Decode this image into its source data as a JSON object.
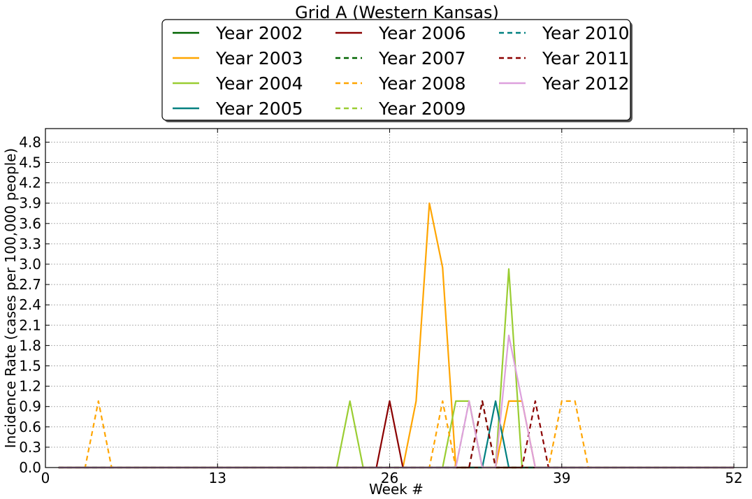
{
  "chart_data": {
    "type": "line",
    "title": "Grid A (Western Kansas)",
    "xlabel": "Week #",
    "ylabel": "Incidence Rate (cases per 100,000 people)",
    "xlim": [
      0,
      53
    ],
    "ylim": [
      0,
      5.0
    ],
    "xticks": [
      0,
      13,
      26,
      39,
      52
    ],
    "yticks": [
      0.0,
      0.3,
      0.6,
      0.9,
      1.2,
      1.5,
      1.8,
      2.1,
      2.4,
      2.7,
      3.0,
      3.3,
      3.6,
      3.9,
      4.2,
      4.5,
      4.8
    ],
    "grid": true,
    "legend_position": "top, outside plot, 3 columns",
    "series": [
      {
        "name": "Year 2002",
        "color": "#006400",
        "dash": "solid",
        "points": [
          [
            1,
            0
          ],
          [
            52,
            0
          ]
        ]
      },
      {
        "name": "Year 2003",
        "color": "#FFA500",
        "dash": "solid",
        "points": [
          [
            1,
            0
          ],
          [
            27,
            0
          ],
          [
            28,
            0.98
          ],
          [
            29,
            3.9
          ],
          [
            30,
            2.95
          ],
          [
            31,
            0
          ],
          [
            34,
            0
          ],
          [
            35,
            0.98
          ],
          [
            36,
            0.98
          ],
          [
            37,
            0
          ],
          [
            52,
            0
          ]
        ]
      },
      {
        "name": "Year 2004",
        "color": "#9ACD32",
        "dash": "solid",
        "points": [
          [
            1,
            0
          ],
          [
            22,
            0
          ],
          [
            23,
            0.98
          ],
          [
            24,
            0
          ],
          [
            30,
            0
          ],
          [
            31,
            0.98
          ],
          [
            32,
            0.98
          ],
          [
            33,
            0
          ],
          [
            34,
            0
          ],
          [
            35,
            2.93
          ],
          [
            36,
            0
          ],
          [
            52,
            0
          ]
        ]
      },
      {
        "name": "Year 2005",
        "color": "#008080",
        "dash": "solid",
        "points": [
          [
            1,
            0
          ],
          [
            33,
            0
          ],
          [
            34,
            0.98
          ],
          [
            35,
            0
          ],
          [
            52,
            0
          ]
        ]
      },
      {
        "name": "Year 2006",
        "color": "#8B0000",
        "dash": "solid",
        "points": [
          [
            1,
            0
          ],
          [
            25,
            0
          ],
          [
            26,
            0.98
          ],
          [
            27,
            0
          ],
          [
            52,
            0
          ]
        ]
      },
      {
        "name": "Year 2007",
        "color": "#006400",
        "dash": "dashed",
        "points": [
          [
            1,
            0
          ],
          [
            32,
            0
          ],
          [
            33,
            0.98
          ],
          [
            34,
            0
          ],
          [
            52,
            0
          ]
        ]
      },
      {
        "name": "Year 2008",
        "color": "#FFA500",
        "dash": "dashed",
        "points": [
          [
            1,
            0
          ],
          [
            3,
            0
          ],
          [
            4,
            0.98
          ],
          [
            5,
            0
          ],
          [
            29,
            0
          ],
          [
            30,
            0.98
          ],
          [
            31,
            0
          ],
          [
            38,
            0
          ],
          [
            39,
            0.98
          ],
          [
            40,
            0.98
          ],
          [
            41,
            0
          ],
          [
            52,
            0
          ]
        ]
      },
      {
        "name": "Year 2009",
        "color": "#9ACD32",
        "dash": "dashed",
        "points": [
          [
            1,
            0
          ],
          [
            31,
            0
          ],
          [
            32,
            0.98
          ],
          [
            33,
            0
          ],
          [
            52,
            0
          ]
        ]
      },
      {
        "name": "Year 2010",
        "color": "#008080",
        "dash": "dashed",
        "points": [
          [
            1,
            0
          ],
          [
            52,
            0
          ]
        ]
      },
      {
        "name": "Year 2011",
        "color": "#8B0000",
        "dash": "dashed",
        "points": [
          [
            1,
            0
          ],
          [
            32,
            0
          ],
          [
            33,
            0.98
          ],
          [
            34,
            0
          ],
          [
            36,
            0
          ],
          [
            37,
            0.98
          ],
          [
            38,
            0
          ],
          [
            52,
            0
          ]
        ]
      },
      {
        "name": "Year 2012",
        "color": "#DDA0DD",
        "dash": "solid",
        "points": [
          [
            1,
            0
          ],
          [
            31,
            0
          ],
          [
            32,
            0.98
          ],
          [
            33,
            0
          ],
          [
            34,
            0
          ],
          [
            35,
            1.95
          ],
          [
            36,
            0.98
          ],
          [
            37,
            0
          ],
          [
            52,
            0
          ]
        ]
      }
    ]
  }
}
